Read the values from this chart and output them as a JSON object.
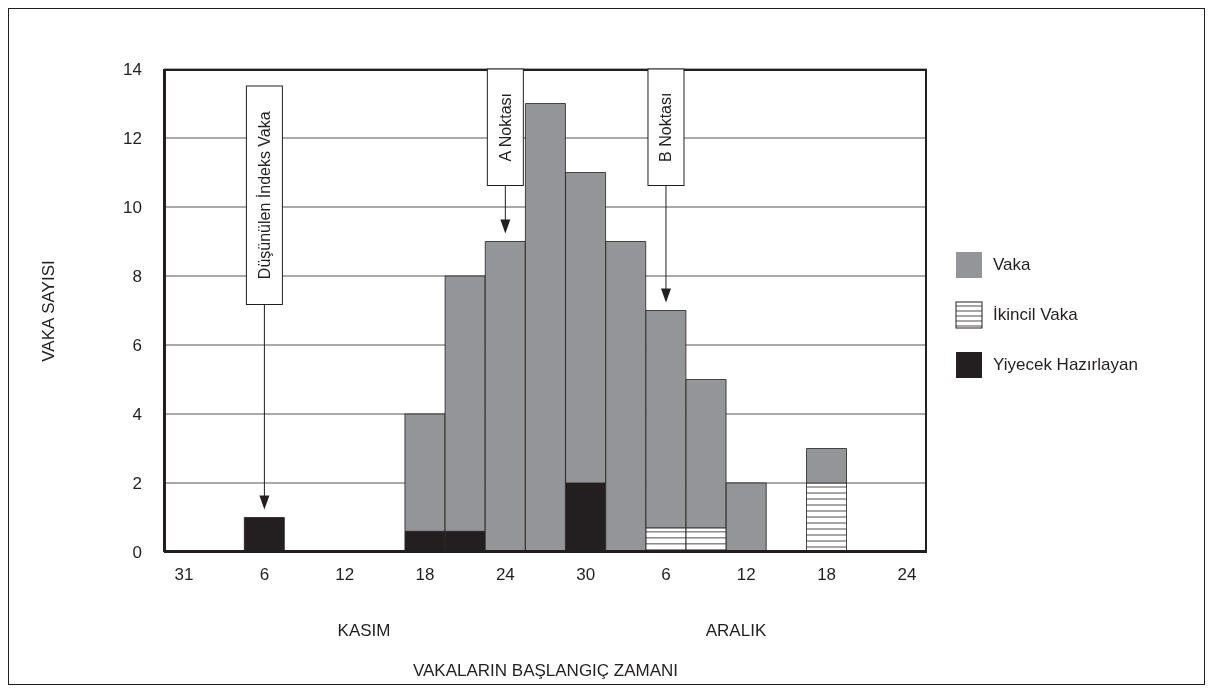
{
  "chart_data": {
    "type": "bar",
    "stacked": true,
    "xlabel": "VAKALARIN BAŞLANGIÇ ZAMANI",
    "ylabel": "VAKA SAYISI",
    "categories": [
      "31",
      null,
      "6",
      null,
      "12",
      null,
      "18",
      null,
      "24",
      null,
      "30",
      null,
      "6",
      null,
      "12",
      null,
      "18",
      null,
      "24"
    ],
    "series": [
      {
        "name": "Yiyecek Hazırlayan",
        "color": "#231f20",
        "values": [
          null,
          null,
          1,
          null,
          null,
          null,
          0.6,
          0.6,
          null,
          null,
          2,
          null,
          null,
          null,
          null,
          null,
          null,
          null,
          null
        ]
      },
      {
        "name": "İkincil Vaka",
        "color": "#ffffff",
        "values": [
          null,
          null,
          null,
          null,
          null,
          null,
          null,
          null,
          null,
          null,
          null,
          null,
          0.7,
          0.7,
          null,
          null,
          2,
          null,
          null
        ]
      },
      {
        "name": "Vaka",
        "color": "#939598",
        "values": [
          null,
          null,
          null,
          null,
          null,
          null,
          3.4,
          7.4,
          9,
          13,
          9,
          9,
          6.3,
          4.3,
          2,
          null,
          1,
          null,
          null
        ]
      }
    ],
    "ylim": [
      0,
      14
    ],
    "yticks": [
      0,
      2,
      4,
      6,
      8,
      10,
      12,
      14
    ],
    "grid": "y",
    "legend": "right",
    "annotations": [
      "Düşünülen İndeks Vaka",
      "A Noktası",
      "B Noktası",
      "KASIM",
      "ARALIK"
    ]
  }
}
